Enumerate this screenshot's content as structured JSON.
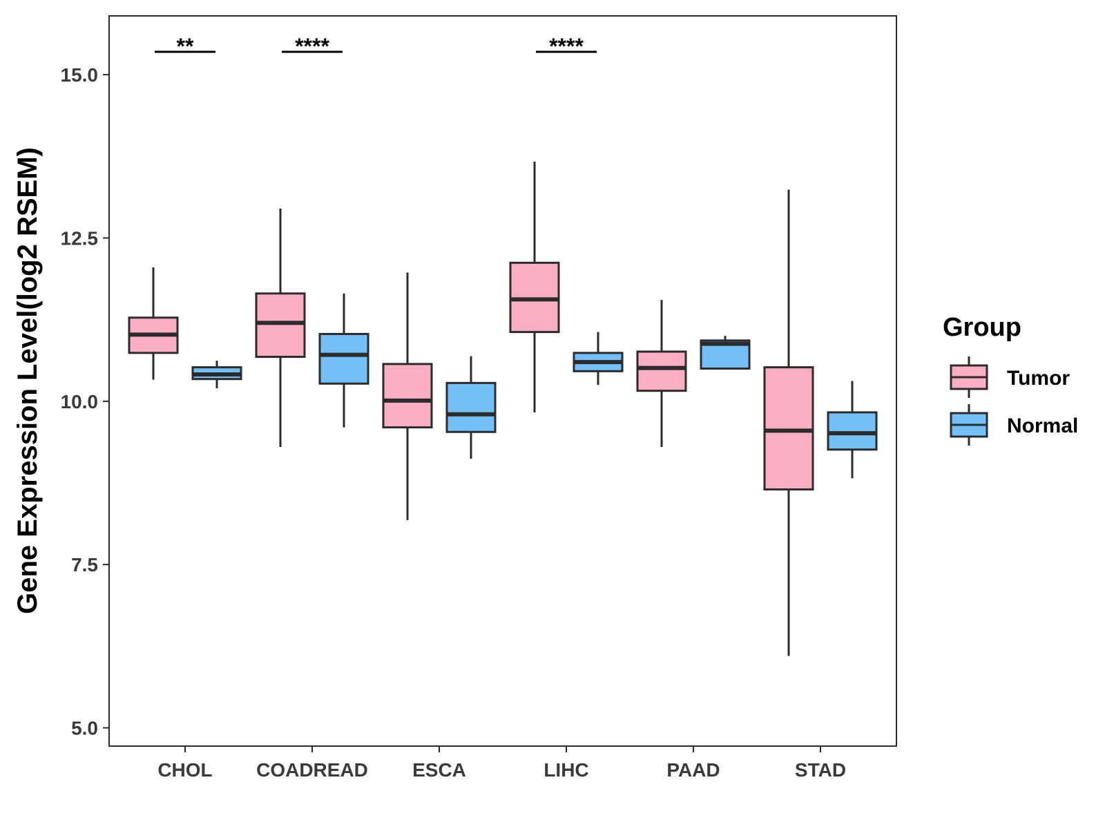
{
  "chart_data": {
    "type": "boxplot",
    "title": "",
    "xlabel": "",
    "ylabel": "Gene Expression Level(log2 RSEM)",
    "ylim": [
      4.72,
      15.9
    ],
    "yticks": [
      5.0,
      7.5,
      10.0,
      12.5,
      15.0
    ],
    "ytick_labels": [
      "5.0",
      "7.5",
      "10.0",
      "12.5",
      "15.0"
    ],
    "categories": [
      "CHOL",
      "COADREAD",
      "ESCA",
      "LIHC",
      "PAAD",
      "STAD"
    ],
    "legend": {
      "title": "Group",
      "position": "right",
      "entries": [
        {
          "name": "Tumor",
          "color": "#f9afc1"
        },
        {
          "name": "Normal",
          "color": "#73c0f8"
        }
      ]
    },
    "series": [
      {
        "name": "Tumor",
        "color": "#f9afc1",
        "boxes": [
          {
            "category": "CHOL",
            "whisker_low": 10.33,
            "q1": 10.74,
            "median": 11.02,
            "q3": 11.28,
            "whisker_high": 12.05
          },
          {
            "category": "COADREAD",
            "whisker_low": 9.3,
            "q1": 10.68,
            "median": 11.2,
            "q3": 11.65,
            "whisker_high": 12.95
          },
          {
            "category": "ESCA",
            "whisker_low": 8.18,
            "q1": 9.6,
            "median": 10.01,
            "q3": 10.57,
            "whisker_high": 11.97
          },
          {
            "category": "LIHC",
            "whisker_low": 9.83,
            "q1": 11.06,
            "median": 11.56,
            "q3": 12.12,
            "whisker_high": 13.67
          },
          {
            "category": "PAAD",
            "whisker_low": 9.3,
            "q1": 10.16,
            "median": 10.51,
            "q3": 10.76,
            "whisker_high": 11.55
          },
          {
            "category": "STAD",
            "whisker_low": 6.1,
            "q1": 8.65,
            "median": 9.55,
            "q3": 10.52,
            "whisker_high": 13.24
          }
        ]
      },
      {
        "name": "Normal",
        "color": "#73c0f8",
        "boxes": [
          {
            "category": "CHOL",
            "whisker_low": 10.2,
            "q1": 10.34,
            "median": 10.41,
            "q3": 10.52,
            "whisker_high": 10.62
          },
          {
            "category": "COADREAD",
            "whisker_low": 9.6,
            "q1": 10.27,
            "median": 10.71,
            "q3": 11.03,
            "whisker_high": 11.65
          },
          {
            "category": "ESCA",
            "whisker_low": 9.12,
            "q1": 9.53,
            "median": 9.8,
            "q3": 10.28,
            "whisker_high": 10.69
          },
          {
            "category": "LIHC",
            "whisker_low": 10.25,
            "q1": 10.46,
            "median": 10.6,
            "q3": 10.74,
            "whisker_high": 11.06
          },
          {
            "category": "PAAD",
            "whisker_low": 10.5,
            "q1": 10.5,
            "median": 10.88,
            "q3": 10.93,
            "whisker_high": 11.0
          },
          {
            "category": "STAD",
            "whisker_low": 8.82,
            "q1": 9.26,
            "median": 9.51,
            "q3": 9.83,
            "whisker_high": 10.31
          }
        ]
      }
    ],
    "annotations": [
      {
        "category": "CHOL",
        "label": "**"
      },
      {
        "category": "COADREAD",
        "label": "****"
      },
      {
        "category": "LIHC",
        "label": "****"
      }
    ]
  }
}
